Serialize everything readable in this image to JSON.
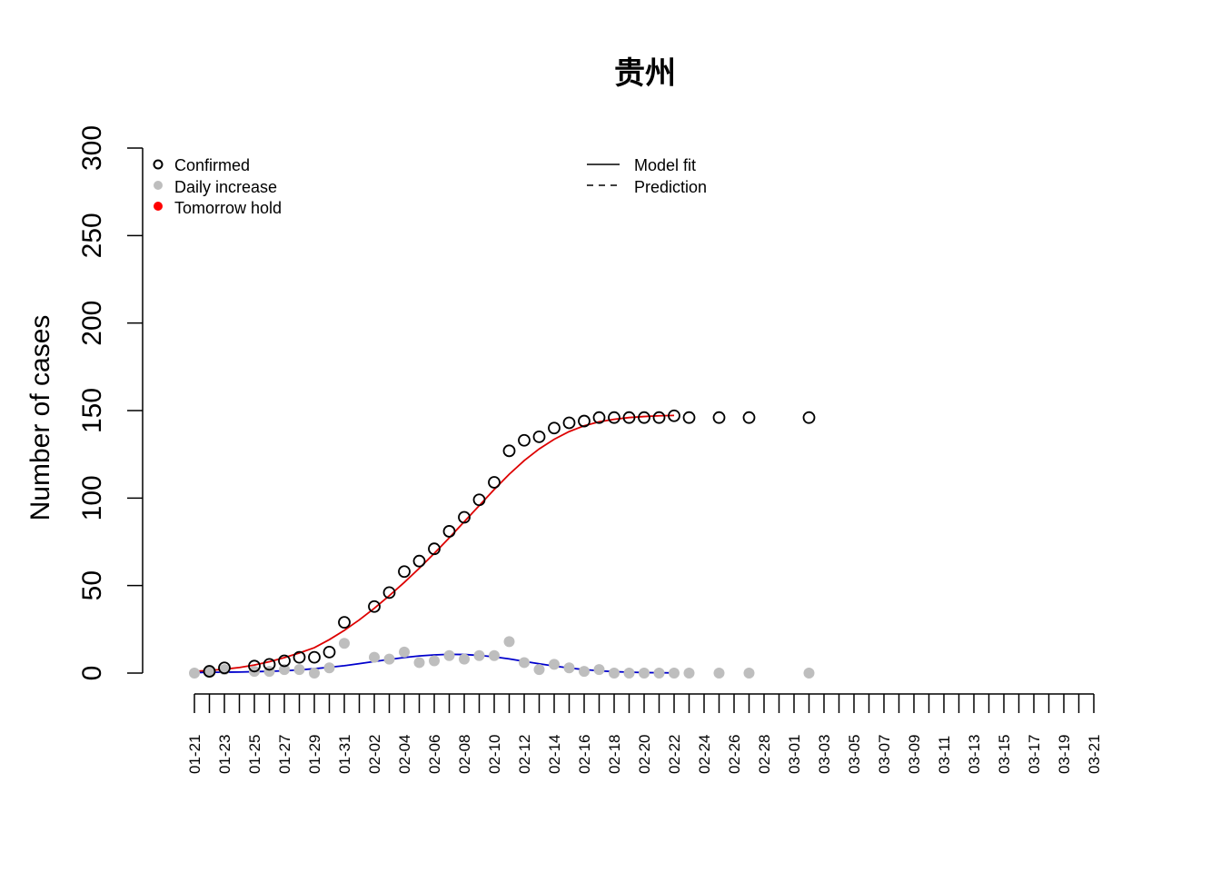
{
  "chart_data": {
    "type": "scatter",
    "title": "贵州",
    "ylabel": "Number of cases",
    "xlabel": "",
    "ylim": [
      0,
      300
    ],
    "yticks": [
      0,
      50,
      100,
      150,
      200,
      250,
      300
    ],
    "xlim_dates": [
      "01-21",
      "03-21"
    ],
    "x_tick_labels": [
      "01-21",
      "01-23",
      "01-25",
      "01-27",
      "01-29",
      "01-31",
      "02-02",
      "02-04",
      "02-06",
      "02-08",
      "02-10",
      "02-12",
      "02-14",
      "02-16",
      "02-18",
      "02-20",
      "02-22",
      "02-24",
      "02-26",
      "02-28",
      "03-01",
      "03-03",
      "03-05",
      "03-07",
      "03-09",
      "03-11",
      "03-13",
      "03-15",
      "03-17",
      "03-19",
      "03-21"
    ],
    "x_tick_label_dates": [
      "01-21",
      "01-23",
      "01-25",
      "01-27",
      "01-29",
      "01-31",
      "02-02",
      "02-04",
      "02-06",
      "02-08",
      "02-10",
      "02-12",
      "02-14",
      "02-16",
      "02-18",
      "02-20",
      "02-22",
      "02-24",
      "02-26",
      "02-28",
      "03-01",
      "03-03",
      "03-05",
      "03-07",
      "03-09",
      "03-11",
      "03-13",
      "03-15",
      "03-17",
      "03-19",
      "03-21"
    ],
    "legend_points": [
      "Confirmed",
      "Daily increase",
      "Tomorrow hold"
    ],
    "legend_lines": [
      "Model fit",
      "Prediction"
    ],
    "legend_placement": "top-left",
    "colors": {
      "confirmed": "#000000",
      "daily": "#bebebe",
      "tomorrow": "#ff0000",
      "fit_confirmed": "#dd0000",
      "fit_daily": "#0000cc",
      "axis": "#000000"
    },
    "confirmed": {
      "x": [
        "01-22",
        "01-23",
        "01-25",
        "01-26",
        "01-27",
        "01-28",
        "01-29",
        "01-30",
        "01-31",
        "02-02",
        "02-03",
        "02-04",
        "02-05",
        "02-06",
        "02-07",
        "02-08",
        "02-09",
        "02-10",
        "02-11",
        "02-12",
        "02-13",
        "02-14",
        "02-15",
        "02-16",
        "02-17",
        "02-18",
        "02-19",
        "02-20",
        "02-21",
        "02-22",
        "02-23",
        "02-25",
        "02-27",
        "03-02"
      ],
      "y": [
        1,
        3,
        4,
        5,
        7,
        9,
        9,
        12,
        29,
        38,
        46,
        58,
        64,
        71,
        81,
        89,
        99,
        109,
        127,
        133,
        135,
        140,
        143,
        144,
        146,
        146,
        146,
        146,
        146,
        147,
        146,
        146,
        146,
        146
      ]
    },
    "daily": {
      "x": [
        "01-21",
        "01-22",
        "01-23",
        "01-25",
        "01-26",
        "01-27",
        "01-28",
        "01-29",
        "01-30",
        "01-31",
        "02-02",
        "02-03",
        "02-04",
        "02-05",
        "02-06",
        "02-07",
        "02-08",
        "02-09",
        "02-10",
        "02-11",
        "02-12",
        "02-13",
        "02-14",
        "02-15",
        "02-16",
        "02-17",
        "02-18",
        "02-19",
        "02-20",
        "02-21",
        "02-22",
        "02-23",
        "02-25",
        "02-27",
        "03-02"
      ],
      "y": [
        0,
        1,
        2,
        1,
        1,
        2,
        2,
        0,
        3,
        17,
        9,
        8,
        12,
        6,
        7,
        10,
        8,
        10,
        10,
        18,
        6,
        2,
        5,
        3,
        1,
        2,
        0,
        0,
        0,
        0,
        0,
        0,
        0,
        0,
        0
      ]
    },
    "fit_confirmed": {
      "x": [
        "01-21",
        "01-22",
        "01-23",
        "01-24",
        "01-25",
        "01-26",
        "01-27",
        "01-28",
        "01-29",
        "01-30",
        "01-31",
        "02-01",
        "02-02",
        "02-03",
        "02-04",
        "02-05",
        "02-06",
        "02-07",
        "02-08",
        "02-09",
        "02-10",
        "02-11",
        "02-12",
        "02-13",
        "02-14",
        "02-15",
        "02-16",
        "02-17",
        "02-18",
        "02-19",
        "02-20",
        "02-21",
        "02-22"
      ],
      "y": [
        1,
        1.5,
        2.2,
        3.2,
        4.6,
        6.5,
        8.8,
        11.5,
        14.5,
        19.1,
        24.4,
        30.4,
        37.0,
        44.2,
        51.8,
        59.9,
        68.4,
        77.3,
        86.5,
        95.7,
        104.9,
        113.6,
        121.4,
        128.1,
        133.6,
        138.0,
        141.3,
        143.6,
        145.0,
        146.0,
        146.6,
        147.0,
        147.2
      ]
    },
    "fit_daily": {
      "x": [
        "01-21",
        "01-22",
        "01-23",
        "01-24",
        "01-25",
        "01-26",
        "01-27",
        "01-28",
        "01-29",
        "01-30",
        "01-31",
        "02-01",
        "02-02",
        "02-03",
        "02-04",
        "02-05",
        "02-06",
        "02-07",
        "02-08",
        "02-09",
        "02-10",
        "02-11",
        "02-12",
        "02-13",
        "02-14",
        "02-15",
        "02-16",
        "02-17",
        "02-18",
        "02-19",
        "02-20",
        "02-21",
        "02-22"
      ],
      "y": [
        0.3,
        0.4,
        0.5,
        0.6,
        0.8,
        1.0,
        1.3,
        1.8,
        2.5,
        3.3,
        4.2,
        5.4,
        6.6,
        7.8,
        8.9,
        9.8,
        10.4,
        10.7,
        10.6,
        10.1,
        9.3,
        8.1,
        6.7,
        5.3,
        4.0,
        2.9,
        2.0,
        1.3,
        0.8,
        0.5,
        0.3,
        0.2,
        0.1
      ]
    }
  }
}
